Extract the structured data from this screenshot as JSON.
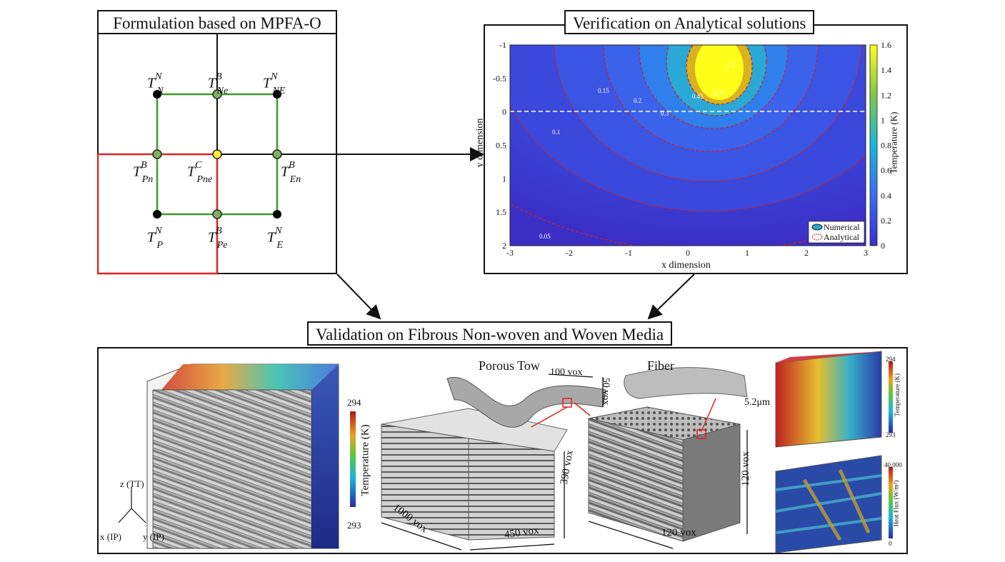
{
  "panels": {
    "formulation": {
      "title": "Formulation based on MPFA-O"
    },
    "verification": {
      "title": "Verification on Analytical solutions"
    },
    "validation": {
      "title": "Validation on Fibrous Non-woven and Woven Media"
    }
  },
  "grid_labels": {
    "tnn": {
      "sym": "T",
      "sup": "N",
      "sub": "N"
    },
    "tne_b": {
      "sym": "T",
      "sup": "B",
      "sub": "Ne"
    },
    "tnen": {
      "sym": "T",
      "sup": "N",
      "sub": "NE"
    },
    "tpn": {
      "sym": "T",
      "sup": "B",
      "sub": "Pn"
    },
    "tpne": {
      "sym": "T",
      "sup": "C",
      "sub": "Pne"
    },
    "ten": {
      "sym": "T",
      "sup": "B",
      "sub": "En"
    },
    "tp": {
      "sym": "T",
      "sup": "N",
      "sub": "P"
    },
    "tpe": {
      "sym": "T",
      "sup": "B",
      "sub": "Pe"
    },
    "te": {
      "sym": "T",
      "sup": "N",
      "sub": "E"
    }
  },
  "chart_data": {
    "type": "heatmap",
    "xlabel": "x dimension",
    "ylabel": "y dimension",
    "xlim": [
      -3,
      3
    ],
    "ylim": [
      -1,
      2
    ],
    "y_inverted": true,
    "x_ticks": [
      "-3",
      "-2",
      "-1",
      "0",
      "1",
      "2",
      "3"
    ],
    "y_ticks": [
      "-1",
      "-0.5",
      "0",
      "0.5",
      "1",
      "1.5",
      "2"
    ],
    "colorbar": {
      "label": "Temperature (K)",
      "min": 0,
      "max": 1.6,
      "ticks": [
        "0",
        "0.2",
        "0.4",
        "0.6",
        "0.8",
        "1",
        "1.2",
        "1.4",
        "1.6"
      ]
    },
    "contour_levels": [
      "0.05",
      "0.1",
      "0.15",
      "0.2",
      "0.3",
      "0.45",
      "0.75",
      "1.2"
    ],
    "legend": {
      "position": "bottom-right",
      "entries": [
        "Numerical",
        "Analytical"
      ]
    },
    "colors": {
      "hot": "#ffff1a",
      "mid": "#27c2b8",
      "low": "#3a45dd",
      "bg": "#3b2fc6",
      "contour": "#d21f1f"
    }
  },
  "validation": {
    "colorbar_left": {
      "max": "294",
      "min": "293",
      "label": "Temperature (K)"
    },
    "axes_labels": {
      "z": "z (TT)",
      "x": "x (IP)",
      "y": "y (IP)"
    },
    "porous_tow": {
      "title": "Porous Tow",
      "dim1": "100 vox",
      "dim2": "50 vox",
      "len": "1000 vox",
      "width": "450 vox",
      "height": "390 vox"
    },
    "fiber": {
      "title": "Fiber",
      "diam": "5.2μm",
      "w1": "120 vox",
      "h1": "120 vox"
    },
    "right_temp": {
      "max": "294",
      "min": "293",
      "label": "Temperature (K)"
    },
    "right_flux": {
      "max": "40,000",
      "min": "0",
      "label": "Heat Flux (W/m²)"
    }
  }
}
